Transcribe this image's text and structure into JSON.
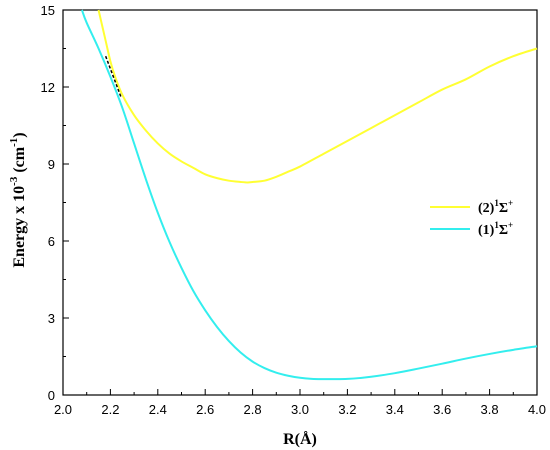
{
  "chart_data": {
    "type": "line",
    "xlabel": "R(Å)",
    "ylabel": "Energy x 10",
    "ylabel_exp": "-3",
    "ylabel_unit": "(cm",
    "ylabel_unit_exp": "-1",
    "ylabel_close": ")",
    "xlim": [
      2.0,
      4.0
    ],
    "ylim": [
      0,
      15
    ],
    "xticks": [
      2.0,
      2.2,
      2.4,
      2.6,
      2.8,
      3.0,
      3.2,
      3.4,
      3.6,
      3.8,
      4.0
    ],
    "xtick_labels": [
      "2.0",
      "2.2",
      "2.4",
      "2.6",
      "2.8",
      "3.0",
      "3.2",
      "3.4",
      "3.6",
      "3.8",
      "4.0"
    ],
    "yticks": [
      0,
      3,
      6,
      9,
      12,
      15
    ],
    "ytick_labels": [
      "0",
      "3",
      "6",
      "9",
      "12",
      "15"
    ],
    "grid": false,
    "legend_position": "right",
    "series": [
      {
        "name": "(2)¹Σ⁺",
        "legend": {
          "prefix": "(2)",
          "sup1": "1",
          "sym": "Σ",
          "sup2": "+"
        },
        "color": "#ffff33",
        "x": [
          2.15,
          2.18,
          2.2,
          2.22,
          2.25,
          2.3,
          2.35,
          2.4,
          2.45,
          2.5,
          2.55,
          2.6,
          2.65,
          2.7,
          2.75,
          2.78,
          2.8,
          2.85,
          2.9,
          2.95,
          3.0,
          3.1,
          3.2,
          3.3,
          3.4,
          3.5,
          3.6,
          3.7,
          3.8,
          3.9,
          4.0
        ],
        "y": [
          15.0,
          13.8,
          13.0,
          12.4,
          11.7,
          10.9,
          10.3,
          9.8,
          9.4,
          9.1,
          8.85,
          8.6,
          8.45,
          8.35,
          8.3,
          8.28,
          8.3,
          8.35,
          8.5,
          8.7,
          8.9,
          9.4,
          9.9,
          10.4,
          10.9,
          11.4,
          11.9,
          12.3,
          12.8,
          13.2,
          13.5
        ]
      },
      {
        "name": "(1)¹Σ⁺",
        "legend": {
          "prefix": "(1)",
          "sup1": "1",
          "sym": "Σ",
          "sup2": "+"
        },
        "color": "#33eeee",
        "x": [
          2.08,
          2.1,
          2.15,
          2.2,
          2.25,
          2.3,
          2.35,
          2.4,
          2.45,
          2.5,
          2.55,
          2.6,
          2.65,
          2.7,
          2.75,
          2.8,
          2.85,
          2.9,
          2.95,
          3.0,
          3.05,
          3.1,
          3.15,
          3.2,
          3.25,
          3.3,
          3.4,
          3.5,
          3.6,
          3.7,
          3.8,
          3.9,
          4.0
        ],
        "y": [
          15.0,
          14.5,
          13.5,
          12.4,
          11.2,
          9.8,
          8.4,
          7.1,
          5.95,
          4.95,
          4.05,
          3.3,
          2.65,
          2.1,
          1.65,
          1.3,
          1.05,
          0.87,
          0.75,
          0.67,
          0.63,
          0.62,
          0.62,
          0.63,
          0.66,
          0.71,
          0.85,
          1.03,
          1.22,
          1.42,
          1.6,
          1.76,
          1.9
        ]
      }
    ],
    "crossing_marker": {
      "type": "dashed-segment",
      "color": "#000000",
      "x": [
        2.18,
        2.245
      ],
      "y": [
        13.2,
        11.6
      ]
    }
  }
}
